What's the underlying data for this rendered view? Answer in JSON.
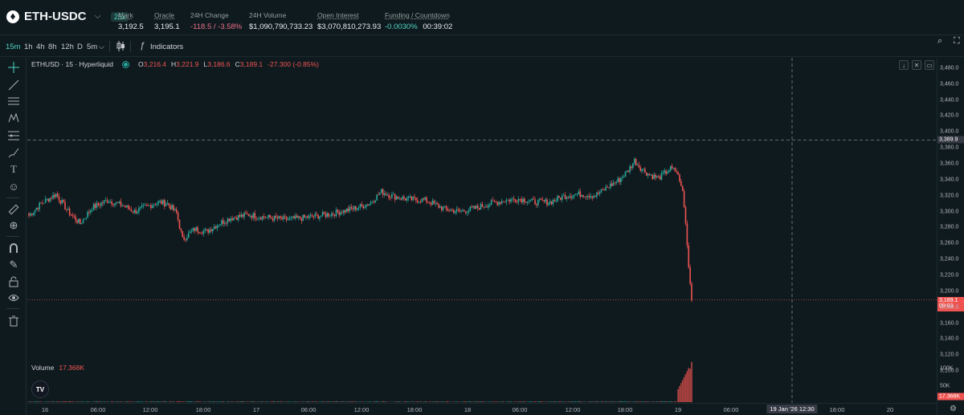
{
  "market": {
    "pair": "ETH-USDC",
    "leverage": "25x",
    "stats": [
      {
        "label": "Mark",
        "value": "3,192.5"
      },
      {
        "label": "Oracle",
        "value": "3,195.1"
      },
      {
        "label": "24H Change",
        "value": "-118.5 / -3.58%"
      },
      {
        "label": "24H Volume",
        "value": "$1,090,790,733.23"
      },
      {
        "label": "Open Interest",
        "value": "$3,070,810,273.93"
      },
      {
        "label": "Funding / Countdown",
        "funding": "-0.0030%",
        "countdown": "00:39:02"
      }
    ]
  },
  "toolbar": {
    "intervals": [
      "15m",
      "1h",
      "4h",
      "8h",
      "12h",
      "D",
      "5m"
    ],
    "active_interval": "15m",
    "indicators_label": "Indicators"
  },
  "legend": {
    "symbol": "ETHUSD · 15 · Hyperliquid",
    "open_label": "O",
    "open": "3,216.4",
    "high_label": "H",
    "high": "3,221.9",
    "low_label": "L",
    "low": "3,186.6",
    "close_label": "C",
    "close": "3,189.1",
    "change": "-27.300 (-0.85%)"
  },
  "volume_legend": {
    "label": "Volume",
    "value": "17.368K"
  },
  "price_scale": {
    "ticks": [
      "3,480.0",
      "3,460.0",
      "3,440.0",
      "3,420.0",
      "3,400.0",
      "3,380.0",
      "3,360.0",
      "3,340.0",
      "3,320.0",
      "3,300.0",
      "3,280.0",
      "3,260.0",
      "3,240.0",
      "3,220.0",
      "3,200.0",
      "3,180.0",
      "3,160.0",
      "3,140.0",
      "3,120.0",
      "3,100.0"
    ],
    "crosshair_price": "3,389.9",
    "last_price": "3,189.1",
    "countdown": "09:03",
    "volume_ticks": [
      "100K",
      "50K"
    ],
    "volume_last": "17.368K"
  },
  "time_axis": {
    "labels": [
      "16",
      "06:00",
      "12:00",
      "18:00",
      "17",
      "06:00",
      "12:00",
      "18:00",
      "18",
      "06:00",
      "12:00",
      "18:00",
      "19",
      "06:00",
      "18:00",
      "20"
    ],
    "crosshair_time": "19 Jan '26 12:30"
  },
  "colors": {
    "up": "#26a69a",
    "down": "#ef5350",
    "background": "#0f1a1f",
    "accent": "#50d2c1"
  },
  "chart_data": {
    "type": "candlestick",
    "price_ylim": [
      3090,
      3490
    ],
    "volume_ylim": [
      0,
      115000
    ],
    "last_close": 3189.1,
    "crosshair_price": 3389.9,
    "anchors": [
      [
        0,
        3295
      ],
      [
        8,
        3310
      ],
      [
        18,
        3322
      ],
      [
        26,
        3300
      ],
      [
        34,
        3285
      ],
      [
        42,
        3305
      ],
      [
        52,
        3314
      ],
      [
        62,
        3308
      ],
      [
        70,
        3300
      ],
      [
        78,
        3306
      ],
      [
        86,
        3312
      ],
      [
        92,
        3310
      ],
      [
        98,
        3298
      ],
      [
        102,
        3265
      ],
      [
        110,
        3278
      ],
      [
        118,
        3275
      ],
      [
        126,
        3285
      ],
      [
        134,
        3292
      ],
      [
        146,
        3296
      ],
      [
        160,
        3292
      ],
      [
        172,
        3290
      ],
      [
        186,
        3293
      ],
      [
        200,
        3297
      ],
      [
        214,
        3303
      ],
      [
        226,
        3310
      ],
      [
        234,
        3325
      ],
      [
        240,
        3320
      ],
      [
        250,
        3316
      ],
      [
        264,
        3314
      ],
      [
        276,
        3303
      ],
      [
        286,
        3300
      ],
      [
        296,
        3304
      ],
      [
        306,
        3310
      ],
      [
        316,
        3314
      ],
      [
        326,
        3316
      ],
      [
        336,
        3312
      ],
      [
        346,
        3312
      ],
      [
        356,
        3320
      ],
      [
        366,
        3322
      ],
      [
        376,
        3320
      ],
      [
        386,
        3333
      ],
      [
        392,
        3340
      ],
      [
        398,
        3352
      ],
      [
        402,
        3364
      ],
      [
        406,
        3355
      ],
      [
        412,
        3346
      ],
      [
        418,
        3342
      ],
      [
        426,
        3354
      ],
      [
        430,
        3350
      ],
      [
        434,
        3326
      ],
      [
        436,
        3285
      ],
      [
        438,
        3230
      ],
      [
        440,
        3189
      ]
    ],
    "candle_count": 441
  }
}
